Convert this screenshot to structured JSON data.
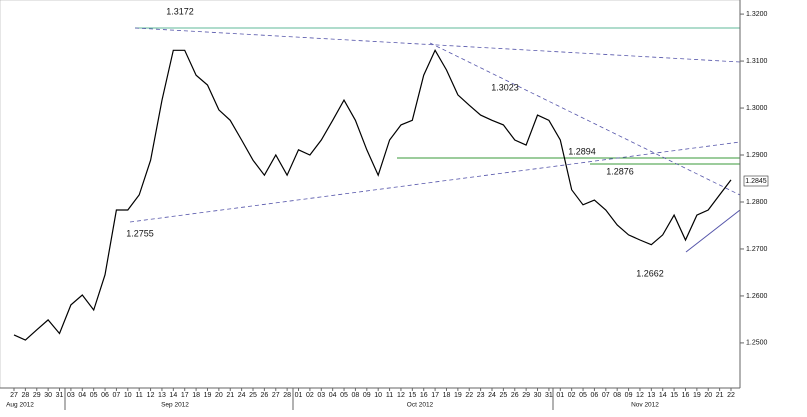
{
  "chart_data": {
    "type": "line",
    "categories": [
      "27",
      "28",
      "29",
      "30",
      "31",
      "03",
      "04",
      "05",
      "06",
      "07",
      "10",
      "11",
      "12",
      "13",
      "14",
      "17",
      "18",
      "19",
      "20",
      "21",
      "24",
      "25",
      "26",
      "27",
      "28",
      "01",
      "02",
      "03",
      "04",
      "05",
      "08",
      "09",
      "10",
      "11",
      "12",
      "15",
      "16",
      "17",
      "18",
      "19",
      "22",
      "23",
      "24",
      "25",
      "26",
      "29",
      "30",
      "31",
      "01",
      "02",
      "05",
      "06",
      "07",
      "08",
      "09",
      "12",
      "13",
      "14",
      "15",
      "16",
      "19",
      "20",
      "21",
      "22"
    ],
    "months": [
      "Aug 2012",
      "Sep 2012",
      "Oct 2012",
      "Nov 2012"
    ],
    "series": [
      {
        "color": "#000000",
        "values": [
          1.2517,
          1.2506,
          1.2528,
          1.2549,
          1.252,
          1.2581,
          1.2602,
          1.257,
          1.2645,
          1.2783,
          1.2783,
          1.2815,
          1.2889,
          1.3017,
          1.3123,
          1.3123,
          1.307,
          1.3049,
          1.2996,
          1.2974,
          1.2932,
          1.2889,
          1.2857,
          1.29,
          1.2857,
          1.2911,
          1.29,
          1.2932,
          1.2974,
          1.3017,
          1.2974,
          1.2911,
          1.2857,
          1.2932,
          1.2964,
          1.2974,
          1.307,
          1.3123,
          1.3081,
          1.3028,
          1.3006,
          1.2985,
          1.2974,
          1.2964,
          1.2932,
          1.2921,
          1.2985,
          1.2974,
          1.2932,
          1.2826,
          1.2794,
          1.2804,
          1.2783,
          1.2751,
          1.273,
          1.2719,
          1.2709,
          1.273,
          1.2772,
          1.2719,
          1.2772,
          1.2783,
          1.2815,
          1.2847
        ]
      }
    ],
    "ylim": [
      1.2404,
      1.323
    ],
    "yticks": [
      {
        "value": 1.25,
        "label": "1.2500"
      },
      {
        "value": 1.26,
        "label": "1.2600"
      },
      {
        "value": 1.27,
        "label": "1.2700"
      },
      {
        "value": 1.28,
        "label": "1.2800"
      },
      {
        "value": 1.29,
        "label": "1.2900"
      },
      {
        "value": 1.3,
        "label": "1.3000"
      },
      {
        "value": 1.31,
        "label": "1.3100"
      },
      {
        "value": 1.32,
        "label": "1.3200"
      }
    ],
    "annotations": [
      "1.3172",
      "1.3023",
      "1.2894",
      "1.2876",
      "1.2755",
      "1.2662"
    ],
    "current_price": "1.2845"
  }
}
